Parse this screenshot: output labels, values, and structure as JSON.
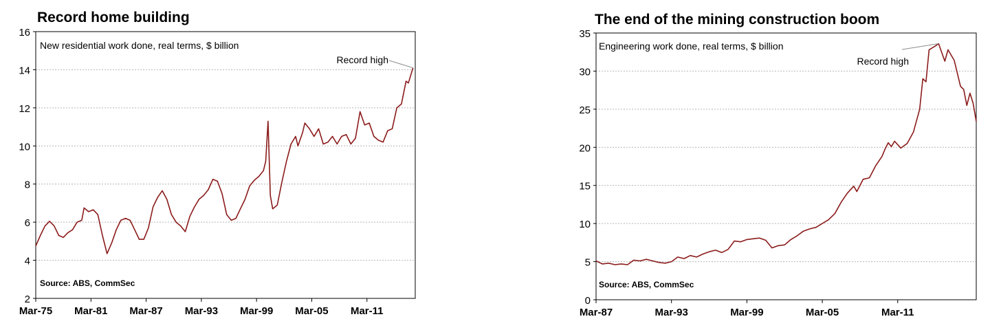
{
  "colors": {
    "line": "#8b1a1a",
    "grid": "#b4b4b4",
    "frame": "#000000",
    "annotation_line": "#8c8c8c"
  },
  "chart_data": [
    {
      "type": "line",
      "title": "Record home building",
      "subtitle": "New residential work done, real terms, $ billion",
      "source": "Source: ABS, CommSec",
      "annotation": "Record high",
      "ylim": [
        2,
        16
      ],
      "yticks": [
        2,
        4,
        6,
        8,
        10,
        12,
        14,
        16
      ],
      "xlim": [
        1975.0,
        2016.25
      ],
      "xticks": [
        {
          "label": "Mar-75",
          "x": 1975.0
        },
        {
          "label": "Mar-81",
          "x": 1981.0
        },
        {
          "label": "Mar-87",
          "x": 1987.0
        },
        {
          "label": "Mar-93",
          "x": 1993.0
        },
        {
          "label": "Mar-99",
          "x": 1999.0
        },
        {
          "label": "Mar-05",
          "x": 2005.0
        },
        {
          "label": "Mar-11",
          "x": 2011.0
        }
      ],
      "grid": true,
      "series": [
        {
          "points": [
            [
              1975.0,
              4.75
            ],
            [
              1975.5,
              5.3
            ],
            [
              1976.0,
              5.8
            ],
            [
              1976.5,
              6.05
            ],
            [
              1977.0,
              5.8
            ],
            [
              1977.5,
              5.3
            ],
            [
              1978.0,
              5.2
            ],
            [
              1978.5,
              5.45
            ],
            [
              1979.0,
              5.6
            ],
            [
              1979.5,
              6.0
            ],
            [
              1980.0,
              6.1
            ],
            [
              1980.25,
              6.75
            ],
            [
              1980.75,
              6.55
            ],
            [
              1981.25,
              6.65
            ],
            [
              1981.75,
              6.4
            ],
            [
              1982.25,
              5.3
            ],
            [
              1982.75,
              4.35
            ],
            [
              1983.25,
              4.9
            ],
            [
              1983.75,
              5.6
            ],
            [
              1984.25,
              6.1
            ],
            [
              1984.75,
              6.2
            ],
            [
              1985.25,
              6.1
            ],
            [
              1985.75,
              5.6
            ],
            [
              1986.25,
              5.1
            ],
            [
              1986.75,
              5.1
            ],
            [
              1987.25,
              5.7
            ],
            [
              1987.75,
              6.8
            ],
            [
              1988.25,
              7.3
            ],
            [
              1988.75,
              7.65
            ],
            [
              1989.25,
              7.2
            ],
            [
              1989.75,
              6.4
            ],
            [
              1990.25,
              6.0
            ],
            [
              1990.75,
              5.8
            ],
            [
              1991.25,
              5.5
            ],
            [
              1991.75,
              6.3
            ],
            [
              1992.25,
              6.8
            ],
            [
              1992.75,
              7.2
            ],
            [
              1993.25,
              7.4
            ],
            [
              1993.75,
              7.7
            ],
            [
              1994.25,
              8.25
            ],
            [
              1994.75,
              8.15
            ],
            [
              1995.25,
              7.5
            ],
            [
              1995.75,
              6.4
            ],
            [
              1996.25,
              6.1
            ],
            [
              1996.75,
              6.2
            ],
            [
              1997.25,
              6.7
            ],
            [
              1997.75,
              7.2
            ],
            [
              1998.25,
              7.9
            ],
            [
              1998.75,
              8.2
            ],
            [
              1999.25,
              8.4
            ],
            [
              1999.75,
              8.7
            ],
            [
              2000.0,
              9.2
            ],
            [
              2000.25,
              11.3
            ],
            [
              2000.5,
              7.4
            ],
            [
              2000.75,
              6.7
            ],
            [
              2001.25,
              6.9
            ],
            [
              2001.75,
              8.1
            ],
            [
              2002.25,
              9.2
            ],
            [
              2002.75,
              10.1
            ],
            [
              2003.25,
              10.5
            ],
            [
              2003.5,
              10.0
            ],
            [
              2004.0,
              10.7
            ],
            [
              2004.25,
              11.2
            ],
            [
              2004.75,
              10.9
            ],
            [
              2005.25,
              10.5
            ],
            [
              2005.75,
              10.9
            ],
            [
              2006.25,
              10.1
            ],
            [
              2006.75,
              10.2
            ],
            [
              2007.25,
              10.5
            ],
            [
              2007.75,
              10.1
            ],
            [
              2008.25,
              10.5
            ],
            [
              2008.75,
              10.6
            ],
            [
              2009.25,
              10.1
            ],
            [
              2009.75,
              10.4
            ],
            [
              2010.25,
              11.8
            ],
            [
              2010.75,
              11.1
            ],
            [
              2011.25,
              11.2
            ],
            [
              2011.75,
              10.5
            ],
            [
              2012.25,
              10.3
            ],
            [
              2012.75,
              10.2
            ],
            [
              2013.25,
              10.8
            ],
            [
              2013.75,
              10.9
            ],
            [
              2014.25,
              12.0
            ],
            [
              2014.75,
              12.2
            ],
            [
              2015.25,
              13.4
            ],
            [
              2015.5,
              13.3
            ],
            [
              2016.0,
              14.1
            ]
          ]
        }
      ]
    },
    {
      "type": "line",
      "title": "The end of the mining construction boom",
      "subtitle": "Engineering work done, real terms, $ billion",
      "source": "Source: ABS, CommSec",
      "annotation": "Record high",
      "ylim": [
        0,
        35
      ],
      "yticks": [
        0,
        5,
        10,
        15,
        20,
        25,
        30,
        35
      ],
      "xlim": [
        1987.0,
        2017.25
      ],
      "xticks": [
        {
          "label": "Mar-87",
          "x": 1987.0
        },
        {
          "label": "Mar-93",
          "x": 1993.0
        },
        {
          "label": "Mar-99",
          "x": 1999.0
        },
        {
          "label": "Mar-05",
          "x": 2005.0
        },
        {
          "label": "Mar-11",
          "x": 2011.0
        }
      ],
      "grid": true,
      "series": [
        {
          "points": [
            [
              1987.0,
              5.1
            ],
            [
              1987.5,
              4.7
            ],
            [
              1988.0,
              4.8
            ],
            [
              1988.5,
              4.6
            ],
            [
              1989.0,
              4.7
            ],
            [
              1989.5,
              4.6
            ],
            [
              1990.0,
              5.2
            ],
            [
              1990.5,
              5.1
            ],
            [
              1991.0,
              5.3
            ],
            [
              1991.5,
              5.1
            ],
            [
              1992.0,
              4.9
            ],
            [
              1992.5,
              4.8
            ],
            [
              1993.0,
              5.0
            ],
            [
              1993.5,
              5.6
            ],
            [
              1994.0,
              5.4
            ],
            [
              1994.5,
              5.8
            ],
            [
              1995.0,
              5.6
            ],
            [
              1995.5,
              6.0
            ],
            [
              1996.0,
              6.3
            ],
            [
              1996.5,
              6.5
            ],
            [
              1997.0,
              6.2
            ],
            [
              1997.5,
              6.6
            ],
            [
              1998.0,
              7.7
            ],
            [
              1998.5,
              7.6
            ],
            [
              1999.0,
              7.9
            ],
            [
              1999.5,
              8.0
            ],
            [
              2000.0,
              8.1
            ],
            [
              2000.5,
              7.8
            ],
            [
              2001.0,
              6.8
            ],
            [
              2001.5,
              7.1
            ],
            [
              2002.0,
              7.2
            ],
            [
              2002.5,
              7.9
            ],
            [
              2003.0,
              8.4
            ],
            [
              2003.5,
              9.0
            ],
            [
              2004.0,
              9.3
            ],
            [
              2004.5,
              9.5
            ],
            [
              2005.0,
              10.0
            ],
            [
              2005.5,
              10.5
            ],
            [
              2006.0,
              11.3
            ],
            [
              2006.5,
              12.8
            ],
            [
              2007.0,
              14.0
            ],
            [
              2007.5,
              14.9
            ],
            [
              2007.75,
              14.2
            ],
            [
              2008.25,
              15.8
            ],
            [
              2008.75,
              16.0
            ],
            [
              2009.25,
              17.6
            ],
            [
              2009.75,
              18.8
            ],
            [
              2010.0,
              19.8
            ],
            [
              2010.25,
              20.6
            ],
            [
              2010.5,
              20.1
            ],
            [
              2010.75,
              20.8
            ],
            [
              2011.25,
              19.9
            ],
            [
              2011.75,
              20.5
            ],
            [
              2012.25,
              22.0
            ],
            [
              2012.75,
              25.0
            ],
            [
              2013.0,
              29.0
            ],
            [
              2013.25,
              28.6
            ],
            [
              2013.5,
              32.8
            ],
            [
              2014.0,
              33.3
            ],
            [
              2014.25,
              33.6
            ],
            [
              2014.75,
              31.3
            ],
            [
              2015.0,
              32.8
            ],
            [
              2015.5,
              31.4
            ],
            [
              2016.0,
              28.0
            ],
            [
              2016.25,
              27.6
            ],
            [
              2016.5,
              25.5
            ],
            [
              2016.75,
              27.1
            ],
            [
              2017.0,
              25.8
            ],
            [
              2017.25,
              23.4
            ]
          ]
        }
      ]
    }
  ]
}
